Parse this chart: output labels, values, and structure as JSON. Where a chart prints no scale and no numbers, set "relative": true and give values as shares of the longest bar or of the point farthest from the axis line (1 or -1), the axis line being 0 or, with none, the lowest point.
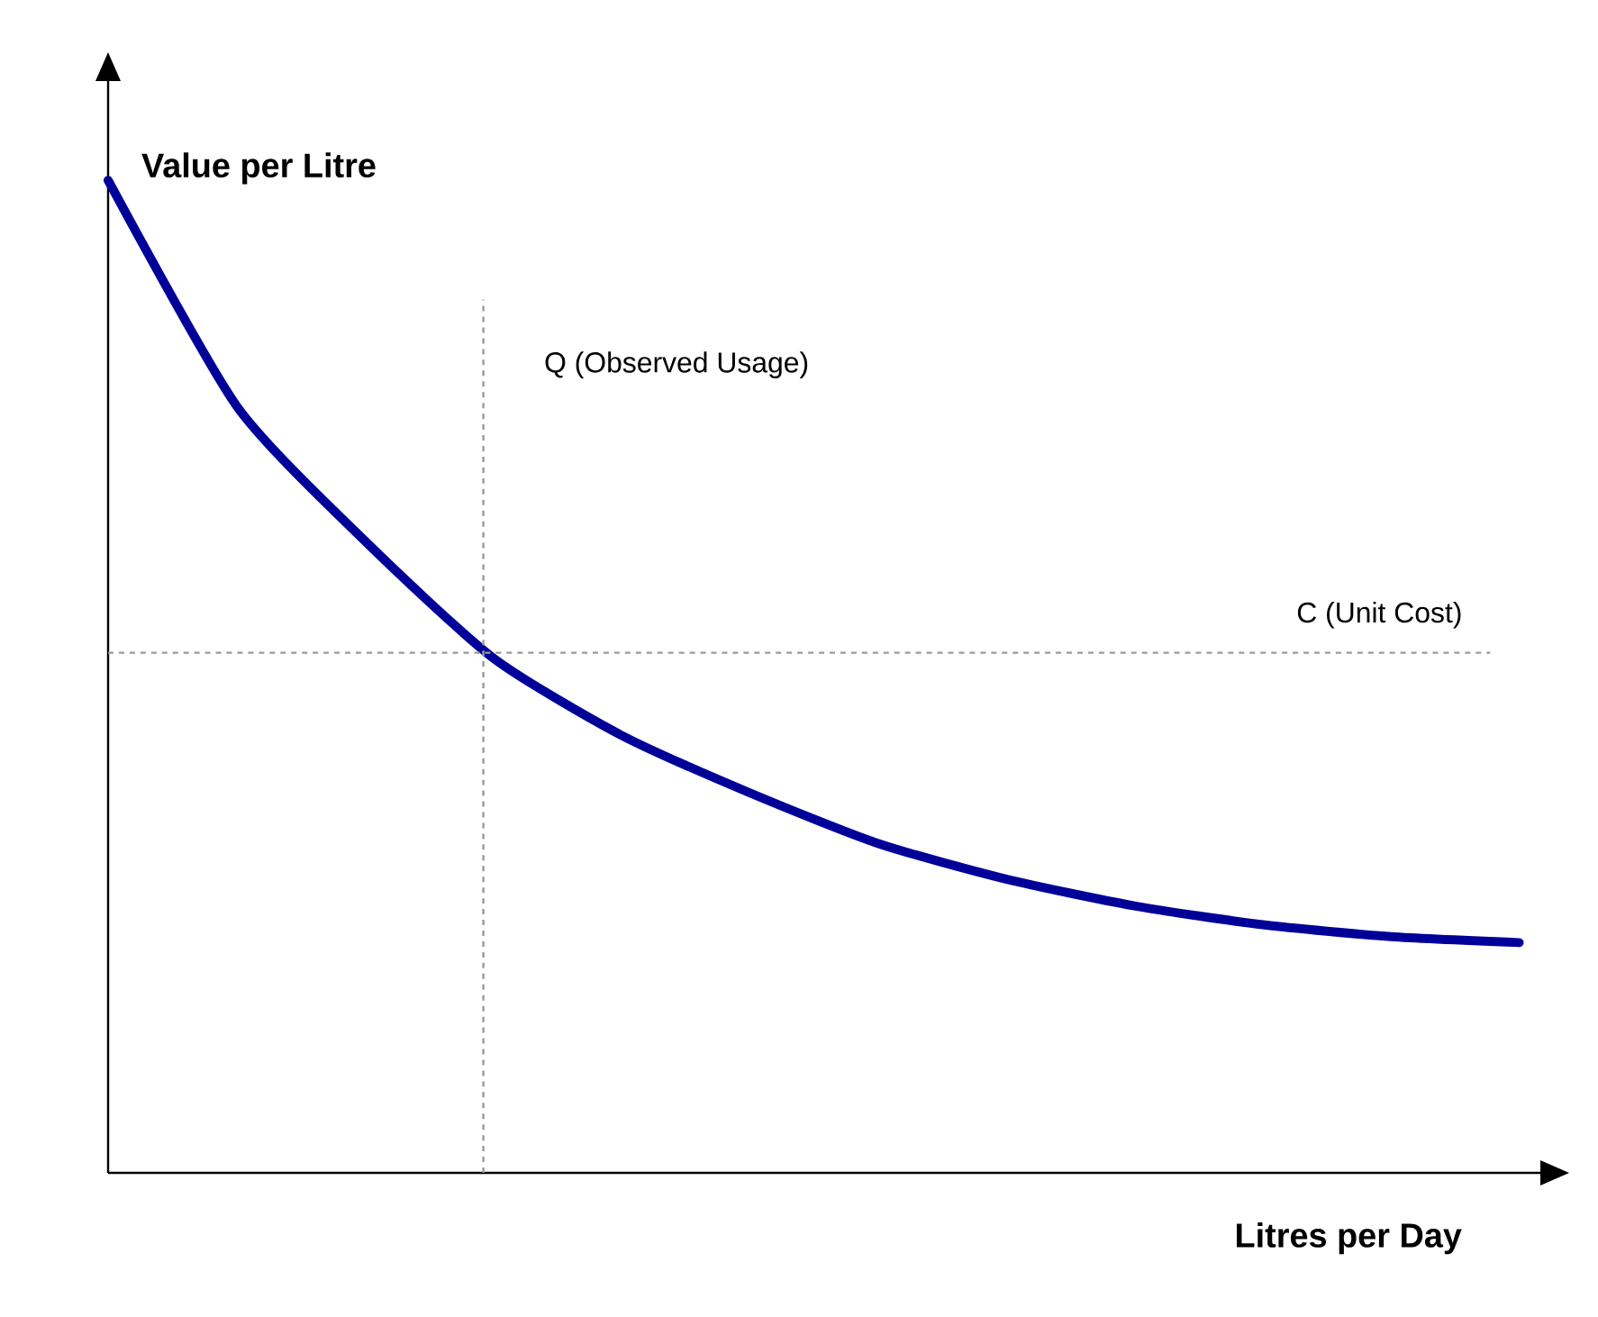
{
  "chart_data": {
    "type": "line",
    "relative": true,
    "xlabel": "Litres per Day",
    "ylabel": "Value per Litre",
    "categories": [
      null,
      null,
      null,
      null,
      null,
      null,
      null,
      null,
      null,
      null,
      null,
      null
    ],
    "series": [
      {
        "color": "#000099",
        "values": [
          1.0,
          0.773,
          0.637,
          0.519,
          0.441,
          0.383,
          0.332,
          0.296,
          0.269,
          0.25,
          0.238,
          0.232
        ]
      }
    ],
    "ref_lines": [
      {
        "axis": "y",
        "value": 0.524,
        "label": "C (Unit Cost)",
        "color": "#999999",
        "line_style": "dashed"
      }
    ],
    "annotations": [
      "Q (Observed Usage)"
    ],
    "marker": "none",
    "line_style": "solid"
  }
}
